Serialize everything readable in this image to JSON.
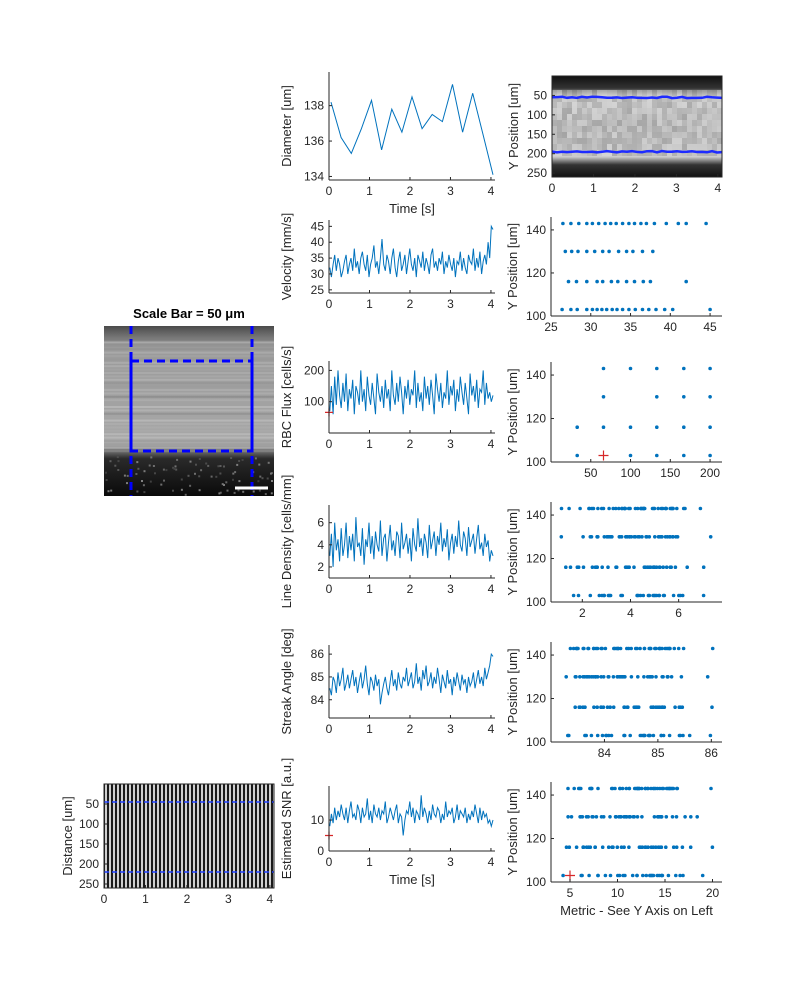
{
  "colors": {
    "series": "#0072BD",
    "marker": "#D62728",
    "box": "#0000FF",
    "axis": "#262626"
  },
  "labels": {
    "scale_bar_title": "Scale Bar = 50 μm",
    "distance": "Distance [um]",
    "time": "Time [s]",
    "metric": "Metric - See Y Axis on Left",
    "ypos": "Y Position [um]"
  },
  "chart_data": [
    {
      "id": "diameter",
      "type": "line",
      "ylabel": "Diameter [um]",
      "xlabel": "Time [s]",
      "xlim": [
        0,
        4.1
      ],
      "ylim": [
        133.8,
        139.9
      ],
      "xticks": [
        0,
        1,
        2,
        3,
        4
      ],
      "yticks": [
        134,
        136,
        138
      ],
      "x": [
        0.05,
        0.3,
        0.55,
        0.8,
        1.05,
        1.3,
        1.55,
        1.8,
        2.05,
        2.3,
        2.55,
        2.8,
        3.05,
        3.3,
        3.55,
        3.8,
        4.05
      ],
      "values": [
        138.2,
        136.2,
        135.3,
        136.7,
        138.3,
        135.5,
        137.8,
        136.5,
        138.5,
        136.7,
        137.5,
        137.1,
        139.2,
        136.5,
        138.7,
        136.4,
        134.1
      ]
    },
    {
      "id": "diameter_kymo",
      "type": "heatmap",
      "ylabel": "Y Position [um]",
      "xlim": [
        0,
        4.1
      ],
      "ylim": [
        260,
        0
      ],
      "xticks": [
        0,
        1,
        2,
        3,
        4
      ],
      "yticks": [
        50,
        100,
        150,
        200,
        250
      ],
      "boundaries": [
        {
          "name": "upper edge",
          "values": 55
        },
        {
          "name": "lower edge",
          "values": 195
        }
      ]
    },
    {
      "id": "velocity",
      "type": "line",
      "ylabel": "Velocity [mm/s]",
      "xlim": [
        0,
        4.1
      ],
      "ylim": [
        24,
        47
      ],
      "xticks": [
        0,
        1,
        2,
        3,
        4
      ],
      "yticks": [
        25,
        30,
        35,
        40,
        45
      ],
      "values": [
        32,
        29,
        33,
        36,
        31,
        35,
        33,
        29,
        31,
        34,
        36,
        30,
        33,
        35,
        31,
        38,
        32,
        34,
        30,
        35,
        37,
        33,
        31,
        36,
        29,
        33,
        35,
        39,
        32,
        34,
        30,
        35,
        41,
        33,
        31,
        36,
        34,
        30,
        35,
        38,
        32,
        29,
        34,
        37,
        31,
        33,
        36,
        30,
        34,
        38,
        33,
        31,
        35,
        29,
        36,
        34,
        32,
        37,
        31,
        35,
        33,
        30,
        36,
        38,
        32,
        34,
        31,
        35,
        33,
        37,
        30,
        34,
        32,
        36,
        33,
        31,
        35,
        29,
        34,
        33,
        37,
        31,
        35,
        32,
        30,
        36,
        34,
        33,
        38,
        31,
        35,
        32,
        37,
        30,
        34,
        36,
        33,
        40,
        35,
        45,
        44
      ]
    },
    {
      "id": "velocity_scatter",
      "type": "scatter",
      "ylabel": "Y Position [um]",
      "xlim": [
        25,
        46.5
      ],
      "ylim": [
        100,
        146
      ],
      "xticks": [
        25,
        30,
        35,
        40,
        45
      ],
      "yticks": [
        100,
        120,
        140
      ],
      "rows": [
        103,
        116,
        130,
        143
      ],
      "points": [
        [
          26.5,
          143
        ],
        [
          27.5,
          143
        ],
        [
          28.5,
          143
        ],
        [
          29.5,
          143
        ],
        [
          30.2,
          143
        ],
        [
          31,
          143
        ],
        [
          31.8,
          143
        ],
        [
          32.5,
          143
        ],
        [
          33.2,
          143
        ],
        [
          34,
          143
        ],
        [
          34.8,
          143
        ],
        [
          35.5,
          143
        ],
        [
          36.3,
          143
        ],
        [
          37,
          143
        ],
        [
          38,
          143
        ],
        [
          39.5,
          143
        ],
        [
          41,
          143
        ],
        [
          42,
          143
        ],
        [
          44.5,
          143
        ],
        [
          26.8,
          130
        ],
        [
          27.6,
          130
        ],
        [
          28.4,
          130
        ],
        [
          29.5,
          130
        ],
        [
          30.5,
          130
        ],
        [
          31.5,
          130
        ],
        [
          32.3,
          130
        ],
        [
          33.5,
          130
        ],
        [
          34.5,
          130
        ],
        [
          35.3,
          130
        ],
        [
          36.5,
          130
        ],
        [
          37.8,
          130
        ],
        [
          27.2,
          116
        ],
        [
          28.2,
          116
        ],
        [
          29.5,
          116
        ],
        [
          30.8,
          116
        ],
        [
          31.5,
          116
        ],
        [
          32.6,
          116
        ],
        [
          33.4,
          116
        ],
        [
          34.5,
          116
        ],
        [
          35.5,
          116
        ],
        [
          36.6,
          116
        ],
        [
          37.5,
          116
        ],
        [
          42,
          116
        ],
        [
          26.4,
          103
        ],
        [
          27.5,
          103
        ],
        [
          28.3,
          103
        ],
        [
          29.5,
          103
        ],
        [
          30.2,
          103
        ],
        [
          30.8,
          103
        ],
        [
          31.4,
          103
        ],
        [
          32,
          103
        ],
        [
          32.7,
          103
        ],
        [
          33.3,
          103
        ],
        [
          34,
          103
        ],
        [
          34.8,
          103
        ],
        [
          35.6,
          103
        ],
        [
          36.5,
          103
        ],
        [
          37.3,
          103
        ],
        [
          38.2,
          103
        ],
        [
          39.3,
          103
        ],
        [
          40.3,
          103
        ],
        [
          45,
          103
        ]
      ]
    },
    {
      "id": "rbc_flux",
      "type": "line",
      "ylabel": "RBC Flux [cells/s]",
      "xlim": [
        0,
        4.1
      ],
      "ylim": [
        0,
        230
      ],
      "xticks": [
        0,
        1,
        2,
        3,
        4
      ],
      "yticks": [
        100,
        200
      ],
      "marker": 66,
      "values": [
        70,
        150,
        60,
        180,
        90,
        200,
        120,
        80,
        160,
        100,
        190,
        70,
        140,
        110,
        170,
        60,
        150,
        130,
        90,
        200,
        100,
        140,
        70,
        180,
        120,
        90,
        160,
        110,
        60,
        190,
        130,
        100,
        150,
        80,
        170,
        110,
        140,
        70,
        200,
        120,
        90,
        160,
        100,
        180,
        130,
        60,
        150,
        110,
        170,
        90,
        140,
        120,
        200,
        80,
        160,
        100,
        130,
        70,
        180,
        110,
        150,
        90,
        170,
        120,
        60,
        190,
        140,
        100,
        160,
        80,
        130,
        110,
        200,
        90,
        150,
        120,
        170,
        70,
        140,
        100,
        180,
        130,
        90,
        160,
        110,
        60,
        190,
        120,
        150,
        100,
        170,
        80,
        140,
        130,
        200,
        90,
        160,
        110,
        130,
        100,
        120
      ]
    },
    {
      "id": "rbc_flux_scatter",
      "type": "scatter",
      "ylabel": "Y Position [um]",
      "xlim": [
        0,
        215
      ],
      "ylim": [
        100,
        146
      ],
      "xticks": [
        50,
        100,
        150,
        200
      ],
      "yticks": [
        100,
        120,
        140
      ],
      "marker": [
        66,
        103
      ],
      "points": [
        [
          66,
          143
        ],
        [
          100,
          143
        ],
        [
          133,
          143
        ],
        [
          167,
          143
        ],
        [
          200,
          143
        ],
        [
          66,
          130
        ],
        [
          133,
          130
        ],
        [
          167,
          130
        ],
        [
          200,
          130
        ],
        [
          33,
          116
        ],
        [
          66,
          116
        ],
        [
          100,
          116
        ],
        [
          133,
          116
        ],
        [
          167,
          116
        ],
        [
          200,
          116
        ],
        [
          33,
          103
        ],
        [
          100,
          103
        ],
        [
          133,
          103
        ],
        [
          167,
          103
        ],
        [
          200,
          103
        ]
      ]
    },
    {
      "id": "line_density",
      "type": "line",
      "ylabel": "Line Density [cells/mm]",
      "xlim": [
        0,
        4.1
      ],
      "ylim": [
        1,
        7.6
      ],
      "xticks": [
        0,
        1,
        2,
        3,
        4
      ],
      "yticks": [
        2,
        4,
        6
      ],
      "values": [
        3,
        5,
        2,
        6,
        3.5,
        4.5,
        2.5,
        5.5,
        3,
        4,
        6,
        2.8,
        4.8,
        3.5,
        5,
        2.5,
        6.5,
        3.8,
        4.2,
        3,
        5.5,
        2.2,
        4.5,
        3.8,
        6,
        3.2,
        4.8,
        2.7,
        5.2,
        4,
        3.4,
        6.2,
        3,
        4.6,
        5,
        2.5,
        4.2,
        5.8,
        3.5,
        4.4,
        3,
        5.2,
        4.8,
        2.8,
        6,
        3.6,
        4.2,
        5,
        3.2,
        4.6,
        2.5,
        5.5,
        4,
        3.4,
        6.4,
        3.8,
        4.6,
        3,
        5,
        4.2,
        2.8,
        5.8,
        3.6,
        4.4,
        5.2,
        3,
        4.8,
        4,
        6,
        3.4,
        4.6,
        3.8,
        5.4,
        2.6,
        4.2,
        5,
        3.2,
        4.8,
        3.8,
        6.2,
        4,
        3.4,
        5.2,
        4.6,
        3,
        5.6,
        3.8,
        4.4,
        5,
        3.2,
        4.6,
        5.8,
        3.6,
        4.2,
        3,
        5,
        3.8,
        4.4,
        2.5,
        3.5,
        3
      ]
    },
    {
      "id": "line_density_scatter",
      "type": "scatter",
      "ylabel": "Y Position [um]",
      "xlim": [
        0.7,
        7.8
      ],
      "ylim": [
        100,
        146
      ],
      "xticks": [
        2,
        4,
        6
      ],
      "yticks": [
        100,
        120,
        140
      ],
      "rows": [
        103,
        116,
        130,
        143
      ]
    },
    {
      "id": "streak_angle",
      "type": "line",
      "ylabel": "Streak Angle [deg]",
      "xlim": [
        0,
        4.1
      ],
      "ylim": [
        83.2,
        86.4
      ],
      "xticks": [
        0,
        1,
        2,
        3,
        4
      ],
      "yticks": [
        84,
        85,
        86
      ],
      "values": [
        84.5,
        84.2,
        85,
        84.8,
        84.3,
        85.2,
        84.6,
        84.9,
        85.4,
        84.4,
        84.7,
        85.1,
        84.5,
        84.9,
        85.3,
        84.6,
        85,
        84.3,
        84.8,
        85.2,
        84.5,
        84.9,
        85.5,
        84.7,
        84.2,
        85,
        84.8,
        84.4,
        85.1,
        84.6,
        84.9,
        83.8,
        84.3,
        84.7,
        85,
        84.5,
        84.2,
        84.8,
        85.3,
        84.6,
        84.9,
        84.4,
        85.2,
        84.7,
        84.5,
        85,
        84.8,
        85.4,
        84.6,
        84.9,
        85.2,
        84.5,
        84.8,
        85.6,
        84.7,
        85,
        84.4,
        85.3,
        84.9,
        85.5,
        84.6,
        84.8,
        85.2,
        84.5,
        85,
        84.7,
        85.4,
        84.9,
        84.3,
        85.1,
        84.8,
        84.5,
        85.3,
        84.7,
        84.9,
        84.2,
        85,
        84.6,
        85.2,
        84.8,
        84.4,
        85.1,
        84.7,
        84.9,
        84.3,
        85,
        84.6,
        84.8,
        85.2,
        84.5,
        84.9,
        85.3,
        84.7,
        85,
        84.6,
        85.4,
        84.9,
        85.2,
        85.5,
        86,
        85.9
      ]
    },
    {
      "id": "streak_angle_scatter",
      "type": "scatter",
      "ylabel": "Y Position [um]",
      "xlim": [
        83,
        86.2
      ],
      "ylim": [
        100,
        146
      ],
      "xticks": [
        84,
        85,
        86
      ],
      "yticks": [
        100,
        120,
        140
      ],
      "rows": [
        103,
        116,
        130,
        143
      ]
    },
    {
      "id": "snr",
      "type": "line",
      "ylabel": "Estimated SNR [a.u.]",
      "xlabel": "Time [s]",
      "xlim": [
        0,
        4.1
      ],
      "ylim": [
        0,
        21
      ],
      "xticks": [
        0,
        1,
        2,
        3,
        4
      ],
      "yticks": [
        0,
        10
      ],
      "marker": 5,
      "values": [
        8,
        12,
        9,
        14,
        10,
        13,
        11,
        15,
        12,
        10,
        14,
        9,
        13,
        16,
        11,
        12,
        10,
        15,
        13,
        9,
        14,
        11,
        12,
        17,
        10,
        13,
        9,
        15,
        12,
        11,
        14,
        10,
        13,
        12,
        16,
        9,
        11,
        14,
        12,
        10,
        13,
        15,
        9,
        12,
        11,
        5,
        10,
        13,
        12,
        16,
        11,
        14,
        9,
        13,
        12,
        10,
        18,
        11,
        14,
        12,
        9,
        13,
        10,
        15,
        12,
        11,
        14,
        13,
        9,
        12,
        10,
        16,
        11,
        13,
        12,
        14,
        9,
        11,
        15,
        10,
        13,
        12,
        11,
        14,
        9,
        12,
        10,
        13,
        11,
        15,
        12,
        9,
        14,
        10,
        13,
        11,
        12,
        9,
        10,
        8,
        10
      ]
    },
    {
      "id": "snr_scatter",
      "type": "scatter",
      "ylabel": "Y Position [um]",
      "xlabel": "Metric - See Y Axis on Left",
      "xlim": [
        3,
        21
      ],
      "ylim": [
        100,
        146
      ],
      "xticks": [
        5,
        10,
        15,
        20
      ],
      "yticks": [
        100,
        120,
        140
      ],
      "marker": [
        5,
        103
      ],
      "rows": [
        103,
        116,
        130,
        143
      ]
    },
    {
      "id": "scale_image",
      "type": "heatmap",
      "title": "Scale Bar = 50 μm"
    },
    {
      "id": "distance_kymo",
      "type": "heatmap",
      "ylabel": "Distance [um]",
      "xlim": [
        0,
        4.1
      ],
      "ylim": [
        260,
        0
      ],
      "xticks": [
        0,
        1,
        2,
        3,
        4
      ],
      "yticks": [
        50,
        100,
        150,
        200,
        250
      ],
      "boundaries": [
        {
          "name": "upper edge",
          "values": 45
        },
        {
          "name": "lower edge",
          "values": 220
        }
      ]
    }
  ]
}
